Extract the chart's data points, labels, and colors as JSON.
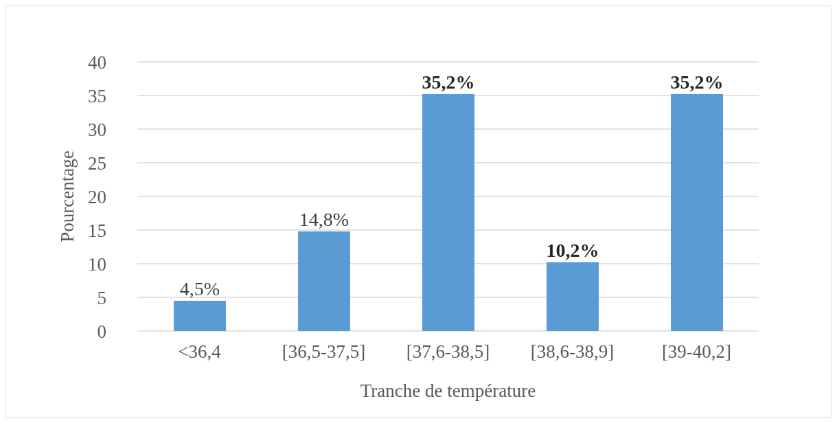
{
  "chart_data": {
    "type": "bar",
    "xlabel": "Tranche de température",
    "ylabel": "Pourcentage",
    "categories": [
      "<36,4",
      "[36,5-37,5]",
      "[37,6-38,5]",
      "[38,6-38,9]",
      "[39-40,2]"
    ],
    "values": [
      4.5,
      14.8,
      35.2,
      10.2,
      35.2
    ],
    "value_labels": [
      "4,5%",
      "14,8%",
      "35,2%",
      "10,2%",
      "35,2%"
    ],
    "color": "#5b9bd5",
    "ylim": [
      0,
      40
    ],
    "yticks": [
      0,
      5,
      10,
      15,
      20,
      25,
      30,
      35,
      40
    ],
    "grid": "y"
  }
}
